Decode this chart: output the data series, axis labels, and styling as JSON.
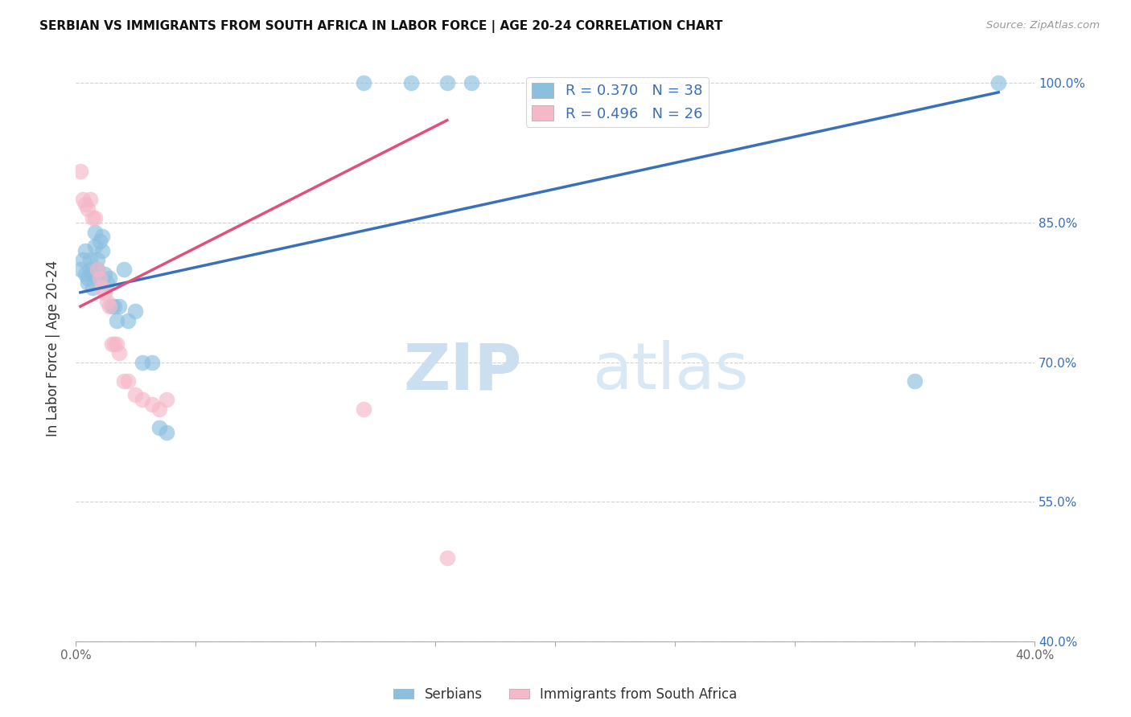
{
  "title": "SERBIAN VS IMMIGRANTS FROM SOUTH AFRICA IN LABOR FORCE | AGE 20-24 CORRELATION CHART",
  "source": "Source: ZipAtlas.com",
  "ylabel": "In Labor Force | Age 20-24",
  "xlim": [
    0.0,
    0.4
  ],
  "ylim": [
    0.4,
    1.03
  ],
  "xtick_positions": [
    0.0,
    0.05,
    0.1,
    0.15,
    0.2,
    0.25,
    0.3,
    0.35,
    0.4
  ],
  "xtick_labels": [
    "0.0%",
    "",
    "",
    "",
    "",
    "",
    "",
    "",
    "40.0%"
  ],
  "ytick_positions": [
    0.4,
    0.55,
    0.7,
    0.85,
    1.0
  ],
  "ytick_labels": [
    "40.0%",
    "55.0%",
    "70.0%",
    "85.0%",
    "100.0%"
  ],
  "blue_scatter_color": "#8bbfe0",
  "pink_scatter_color": "#f5b8c8",
  "blue_line_color": "#3a6fba",
  "pink_line_color": "#e0507a",
  "legend_label_blue": "Serbians",
  "legend_label_pink": "Immigrants from South Africa",
  "legend_R_blue": "R = 0.370",
  "legend_N_blue": "N = 38",
  "legend_R_pink": "R = 0.496",
  "legend_N_pink": "N = 26",
  "serbian_x": [
    0.002,
    0.003,
    0.004,
    0.004,
    0.005,
    0.005,
    0.006,
    0.006,
    0.007,
    0.007,
    0.008,
    0.008,
    0.009,
    0.009,
    0.01,
    0.01,
    0.011,
    0.011,
    0.012,
    0.013,
    0.014,
    0.015,
    0.016,
    0.017,
    0.018,
    0.02,
    0.022,
    0.025,
    0.028,
    0.032,
    0.035,
    0.038,
    0.12,
    0.14,
    0.155,
    0.165,
    0.35,
    0.385
  ],
  "serbian_y": [
    0.8,
    0.81,
    0.82,
    0.795,
    0.79,
    0.785,
    0.8,
    0.81,
    0.795,
    0.78,
    0.84,
    0.825,
    0.8,
    0.81,
    0.79,
    0.83,
    0.835,
    0.82,
    0.795,
    0.785,
    0.79,
    0.76,
    0.76,
    0.745,
    0.76,
    0.8,
    0.745,
    0.755,
    0.7,
    0.7,
    0.63,
    0.625,
    1.0,
    1.0,
    1.0,
    1.0,
    0.68,
    1.0
  ],
  "sa_x": [
    0.002,
    0.003,
    0.004,
    0.005,
    0.006,
    0.007,
    0.008,
    0.009,
    0.01,
    0.011,
    0.012,
    0.013,
    0.014,
    0.015,
    0.016,
    0.017,
    0.018,
    0.02,
    0.022,
    0.025,
    0.028,
    0.032,
    0.035,
    0.038,
    0.12,
    0.155
  ],
  "sa_y": [
    0.905,
    0.875,
    0.87,
    0.865,
    0.875,
    0.855,
    0.855,
    0.8,
    0.79,
    0.78,
    0.775,
    0.765,
    0.76,
    0.72,
    0.72,
    0.72,
    0.71,
    0.68,
    0.68,
    0.665,
    0.66,
    0.655,
    0.65,
    0.66,
    0.65,
    0.49
  ],
  "blue_trendline_x": [
    0.002,
    0.385
  ],
  "blue_trendline_y": [
    0.775,
    0.99
  ],
  "pink_trendline_x": [
    0.002,
    0.155
  ],
  "pink_trendline_y": [
    0.76,
    0.96
  ]
}
